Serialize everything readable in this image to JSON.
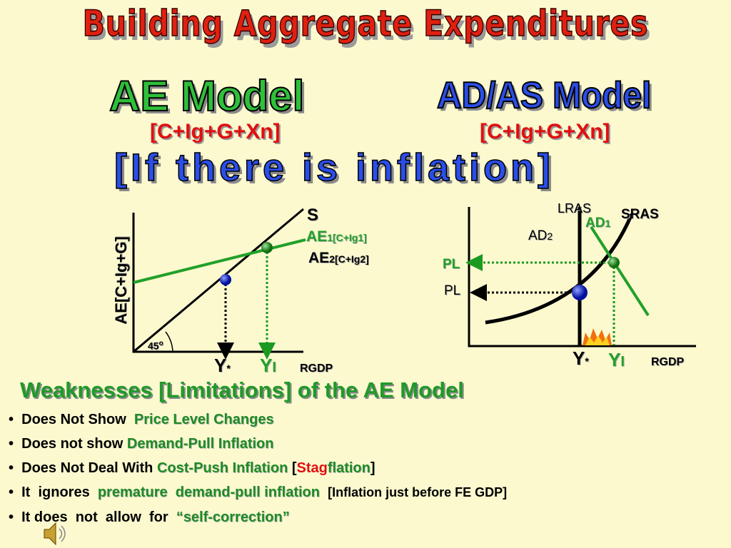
{
  "title": "Building Aggregate Expenditures",
  "ae_model": {
    "name": "AE Model",
    "formula": "[C+Ig+G+Xn]"
  },
  "adas_model": {
    "name": "AD/AS Model",
    "formula": "[C+Ig+G+Xn]"
  },
  "subtitle": "[If there is inflation]",
  "ae_graph": {
    "y_label": "AE[C+Ig+G]",
    "s_label": "S",
    "ae1": {
      "main": "AE",
      "sub": "1[C+Ig1]"
    },
    "ae2": {
      "main": "AE",
      "sub": "2[C+Ig2]"
    },
    "angle": {
      "main": "45",
      "sup": "o"
    },
    "y_star": {
      "main": "Y",
      "sup": "*"
    },
    "y_i": {
      "main": "Y",
      "sub": "I"
    },
    "x_label": "RGDP"
  },
  "adas_graph": {
    "lras": "LRAS",
    "sras": "SRAS",
    "ad1": {
      "main": "AD",
      "sub": "1"
    },
    "ad2": {
      "main": "AD",
      "sub": "2"
    },
    "pl_high": "PL",
    "pl_low": "PL",
    "y_star": {
      "main": "Y",
      "sup": "*"
    },
    "y_i": {
      "main": "Y",
      "sub": "I"
    },
    "x_label": "RGDP"
  },
  "weaknesses": {
    "heading": "Weaknesses [Limitations] of the AE Model",
    "items": [
      [
        "Does Not Show",
        "Price Level Changes"
      ],
      [
        "Does not show",
        "Demand-Pull Inflation"
      ],
      [
        "Does Not Deal With",
        "Cost-Push Inflation",
        "[",
        "Stag",
        "flation",
        "]"
      ],
      [
        "It  ignores",
        "premature",
        "demand-pull inflation",
        "[Inflation just before FE GDP]"
      ],
      [
        "It does  not  allow  for",
        "“self-correction”"
      ]
    ]
  }
}
